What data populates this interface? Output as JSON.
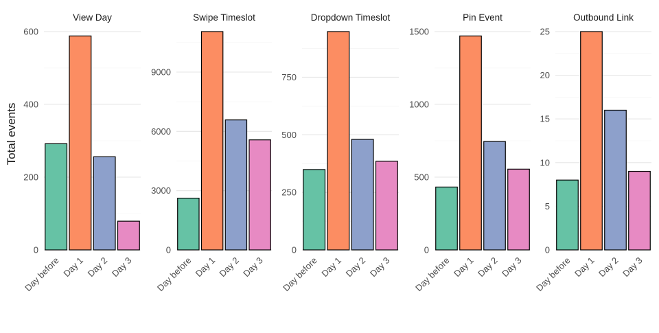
{
  "chart_data": {
    "type": "bar",
    "ylabel": "Total events",
    "categories": [
      "Day before",
      "Day 1",
      "Day 2",
      "Day 3"
    ],
    "colors": [
      "#66c2a5",
      "#fc8d62",
      "#8da0cb",
      "#e78ac3"
    ],
    "panels": [
      {
        "title": "View Day",
        "values": [
          292,
          588,
          256,
          79
        ],
        "ylim": [
          0,
          600
        ],
        "yticks": [
          0,
          200,
          400,
          600
        ]
      },
      {
        "title": "Swipe Timeslot",
        "values": [
          2620,
          11050,
          6580,
          5570
        ],
        "ylim": [
          0,
          11050
        ],
        "yticks": [
          0,
          3000,
          6000,
          9000
        ]
      },
      {
        "title": "Dropdown Timeslot",
        "values": [
          349,
          948,
          480,
          385
        ],
        "ylim": [
          0,
          948
        ],
        "yticks": [
          0,
          250,
          500,
          750
        ]
      },
      {
        "title": "Pin Event",
        "values": [
          432,
          1470,
          745,
          555
        ],
        "ylim": [
          0,
          1500
        ],
        "yticks": [
          0,
          500,
          1000,
          1500
        ]
      },
      {
        "title": "Outbound Link",
        "values": [
          8,
          25,
          16,
          9
        ],
        "ylim": [
          0,
          25
        ],
        "yticks": [
          0,
          5,
          10,
          15,
          20,
          25
        ]
      }
    ],
    "grid": true,
    "legend": "none"
  }
}
